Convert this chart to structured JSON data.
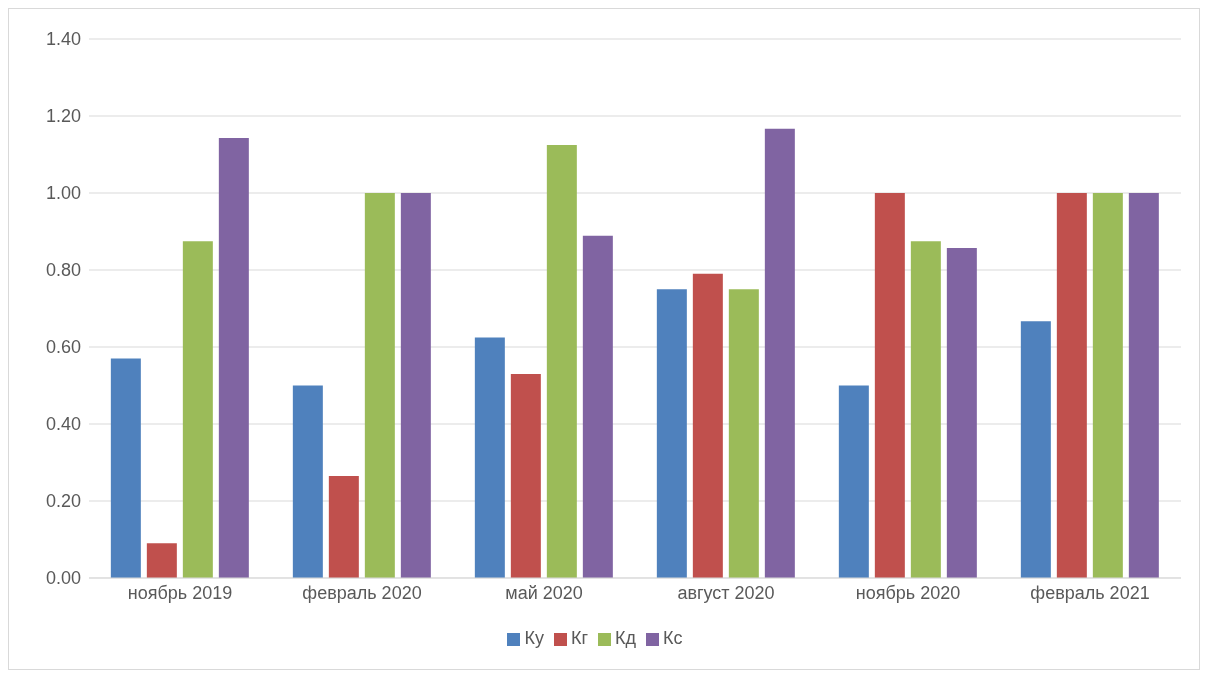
{
  "chart_data": {
    "type": "bar",
    "categories": [
      "ноябрь 2019",
      "февраль 2020",
      "май 2020",
      "август 2020",
      "ноябрь 2020",
      "февраль 2021"
    ],
    "series": [
      {
        "name": "Ку",
        "color": "#4f81bd",
        "values": [
          0.57,
          0.5,
          0.625,
          0.75,
          0.5,
          0.667
        ]
      },
      {
        "name": "Кг",
        "color": "#c0504d",
        "values": [
          0.09,
          0.265,
          0.53,
          0.79,
          1.0,
          1.0
        ]
      },
      {
        "name": "Кд",
        "color": "#9bbb59",
        "values": [
          0.875,
          1.0,
          1.125,
          0.75,
          0.875,
          1.0
        ]
      },
      {
        "name": "Кс",
        "color": "#8064a2",
        "values": [
          1.143,
          1.0,
          0.889,
          1.167,
          0.857,
          1.0
        ]
      }
    ],
    "ylim": [
      0,
      1.4
    ],
    "yticks": [
      {
        "value": 0,
        "label": "0.00"
      },
      {
        "value": 0.2,
        "label": "0.20"
      },
      {
        "value": 0.4,
        "label": "0.40"
      },
      {
        "value": 0.6,
        "label": "0.60"
      },
      {
        "value": 0.8,
        "label": "0.80"
      },
      {
        "value": 1,
        "label": "1.00"
      },
      {
        "value": 1.2,
        "label": "1.20"
      },
      {
        "value": 1.4,
        "label": "1.40"
      }
    ],
    "grid": "y",
    "legend": "bottom"
  }
}
